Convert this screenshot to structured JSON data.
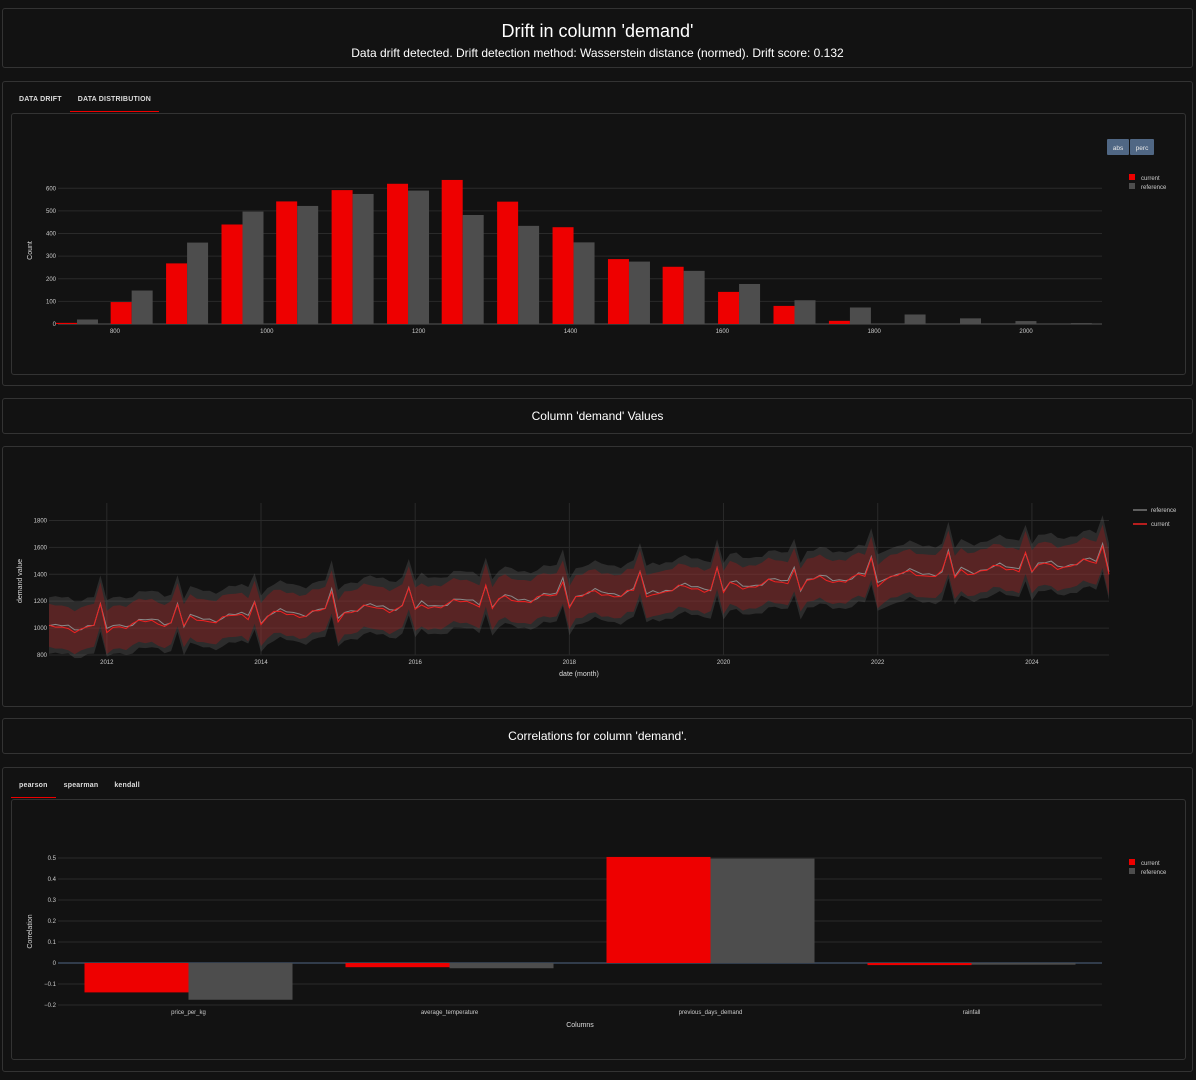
{
  "header": {
    "title": "Drift in column 'demand'",
    "subtitle": "Data drift detected. Drift detection method: Wasserstein distance (normed). Drift score: 0.132"
  },
  "dist_tabs": [
    {
      "label": "DATA DRIFT",
      "active": false
    },
    {
      "label": "DATA DISTRIBUTION",
      "active": true
    }
  ],
  "dist_buttons": {
    "abs": "abs",
    "perc": "perc"
  },
  "values_title": "Column 'demand' Values",
  "corr_title": "Correlations for column 'demand'.",
  "corr_tabs": [
    {
      "label": "pearson",
      "active": true
    },
    {
      "label": "spearman",
      "active": false
    },
    {
      "label": "kendall",
      "active": false
    }
  ],
  "colors": {
    "current": "#ee0000",
    "reference": "#4d4d4d"
  },
  "chart_data": [
    {
      "id": "distribution",
      "type": "bar",
      "ylabel": "Count",
      "xlabel": "",
      "x_ticks": [
        "800",
        "1000",
        "1200",
        "1400",
        "1600",
        "1800",
        "2000"
      ],
      "x_tick_values": [
        800,
        1000,
        1200,
        1400,
        1600,
        1800,
        2000
      ],
      "y_ticks": [
        "0",
        "100",
        "200",
        "300",
        "400",
        "500",
        "600"
      ],
      "ylim": [
        0,
        650
      ],
      "bin_centers": [
        750,
        822,
        895,
        968,
        1040,
        1113,
        1186,
        1258,
        1331,
        1404,
        1477,
        1549,
        1622,
        1695,
        1768,
        1840,
        1913,
        1986,
        2059
      ],
      "series": [
        {
          "name": "current",
          "values": [
            5,
            97,
            268,
            440,
            542,
            592,
            620,
            637,
            541,
            428,
            287,
            253,
            142,
            80,
            14,
            0,
            0,
            0,
            0
          ]
        },
        {
          "name": "reference",
          "values": [
            20,
            148,
            360,
            497,
            522,
            575,
            590,
            482,
            434,
            361,
            276,
            235,
            177,
            105,
            73,
            42,
            25,
            13,
            4
          ]
        }
      ],
      "legend_position": "top-right"
    },
    {
      "id": "values",
      "type": "line",
      "ylabel": "demand value",
      "xlabel": "date (month)",
      "x_ticks": [
        "2012",
        "2014",
        "2016",
        "2018",
        "2020",
        "2022",
        "2024"
      ],
      "y_ticks": [
        "800",
        "1000",
        "1200",
        "1400",
        "1600",
        "1800"
      ],
      "ylim": [
        800,
        1900
      ],
      "xlim": [
        "2011-04",
        "2025-01"
      ],
      "trend": {
        "start_date": "2011-04",
        "end_date": "2025-01",
        "start_value": 1000,
        "end_value": 1500,
        "december_peak": 130
      },
      "band_halfwidth": {
        "current": 160,
        "reference": 210
      },
      "series": [
        {
          "name": "reference"
        },
        {
          "name": "current"
        }
      ],
      "legend_position": "top-right"
    },
    {
      "id": "correlations",
      "type": "bar",
      "ylabel": "Correlation",
      "xlabel": "Columns",
      "categories": [
        "price_per_kg",
        "average_temperature",
        "previous_days_demand",
        "rainfall"
      ],
      "y_ticks": [
        "−0.2",
        "−0.1",
        "0",
        "0.1",
        "0.2",
        "0.3",
        "0.4",
        "0.5"
      ],
      "ylim": [
        -0.2,
        0.5
      ],
      "series": [
        {
          "name": "current",
          "values": [
            -0.14,
            -0.02,
            0.505,
            -0.01
          ]
        },
        {
          "name": "reference",
          "values": [
            -0.175,
            -0.025,
            0.497,
            -0.008
          ]
        }
      ],
      "legend_position": "top-right"
    }
  ]
}
